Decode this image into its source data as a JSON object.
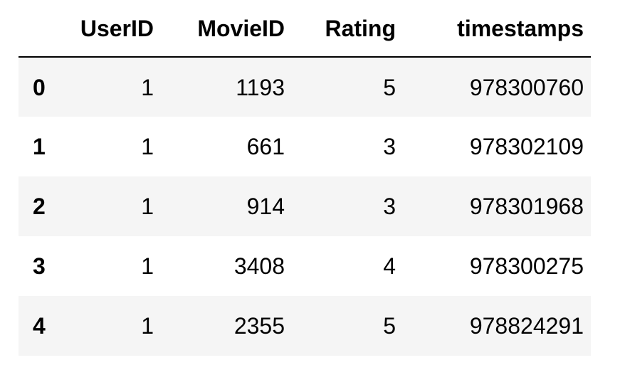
{
  "table": {
    "index_header": "",
    "columns": [
      "UserID",
      "MovieID",
      "Rating",
      "timestamps"
    ],
    "rows": [
      {
        "index": "0",
        "cells": [
          "1",
          "1193",
          "5",
          "978300760"
        ]
      },
      {
        "index": "1",
        "cells": [
          "1",
          "661",
          "3",
          "978302109"
        ]
      },
      {
        "index": "2",
        "cells": [
          "1",
          "914",
          "3",
          "978301968"
        ]
      },
      {
        "index": "3",
        "cells": [
          "1",
          "3408",
          "4",
          "978300275"
        ]
      },
      {
        "index": "4",
        "cells": [
          "1",
          "2355",
          "5",
          "978824291"
        ]
      }
    ]
  },
  "colors": {
    "stripe": "#f5f5f5",
    "header_rule": "#000000",
    "text": "#000000"
  }
}
